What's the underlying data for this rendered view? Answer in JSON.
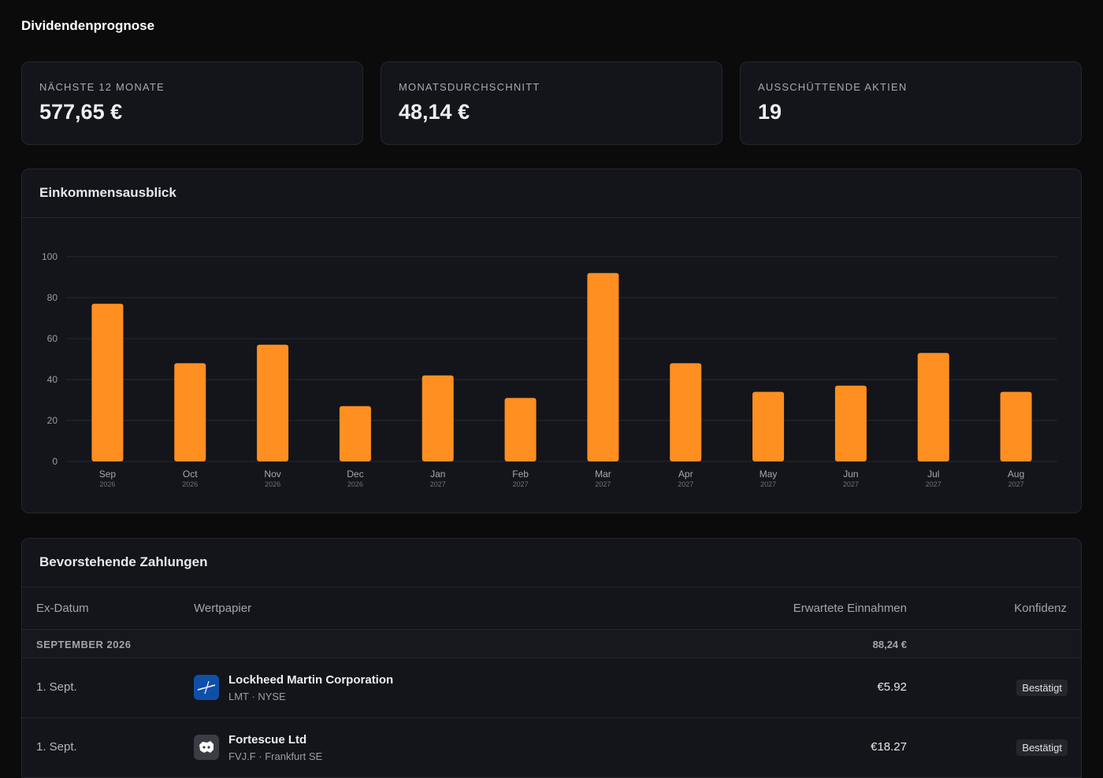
{
  "page": {
    "title": "Dividendenprognose"
  },
  "stats": [
    {
      "label": "NÄCHSTE 12 MONATE",
      "value": "577,65 €"
    },
    {
      "label": "MONATSDURCHSCHNITT",
      "value": "48,14 €"
    },
    {
      "label": "AUSSCHÜTTENDE AKTIEN",
      "value": "19"
    }
  ],
  "chart_panel": {
    "title": "Einkommensausblick"
  },
  "colors": {
    "bar": "#ff8f20",
    "background": "#0b0b0c",
    "card": "#13151a"
  },
  "chart_data": {
    "type": "bar",
    "categories": [
      "Sep",
      "Oct",
      "Nov",
      "Dec",
      "Jan",
      "Feb",
      "Mar",
      "Apr",
      "May",
      "Jun",
      "Jul",
      "Aug"
    ],
    "years": [
      "2026",
      "2026",
      "2026",
      "2026",
      "2027",
      "2027",
      "2027",
      "2027",
      "2027",
      "2027",
      "2027",
      "2027"
    ],
    "values": [
      77,
      48,
      57,
      27,
      42,
      31,
      92,
      48,
      34,
      37,
      53,
      34
    ],
    "yticks": [
      0,
      20,
      40,
      60,
      80,
      100
    ],
    "ylim": [
      0,
      100
    ],
    "grid": true,
    "title": "",
    "xlabel": "",
    "ylabel": ""
  },
  "payments": {
    "title": "Bevorstehende Zahlungen",
    "columns": {
      "date": "Ex-Datum",
      "security": "Wertpapier",
      "income": "Erwartete Einnahmen",
      "confidence": "Konfidenz"
    },
    "group": {
      "label": "SEPTEMBER 2026",
      "total": "88,24 €"
    },
    "rows": [
      {
        "date": "1. Sept.",
        "name": "Lockheed Martin Corporation",
        "sub": "LMT · NYSE",
        "amount": "€5.92",
        "confidence": "Bestätigt",
        "logo": "lockheed-logo"
      },
      {
        "date": "1. Sept.",
        "name": "Fortescue Ltd",
        "sub": "FVJ.F · Frankfurt SE",
        "amount": "€18.27",
        "confidence": "Bestätigt",
        "logo": "fortescue-logo"
      }
    ]
  }
}
